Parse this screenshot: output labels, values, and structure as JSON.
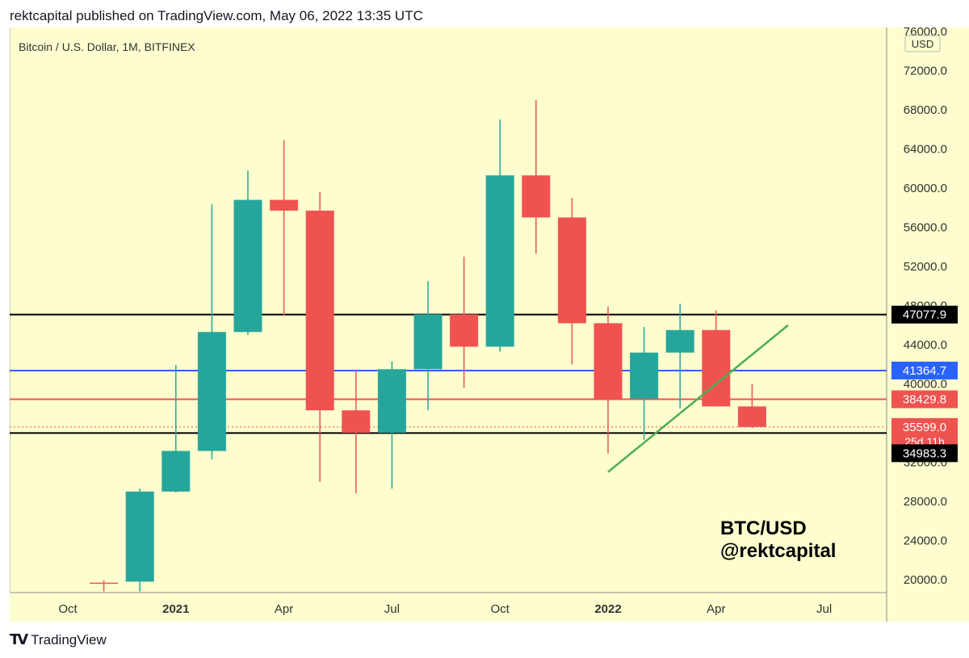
{
  "header": {
    "publish_line": "rektcapital published on TradingView.com, May 06, 2022 13:35 UTC"
  },
  "symbol": {
    "title": "Bitcoin / U.S. Dollar, 1M, BITFINEX",
    "currency_label": "USD"
  },
  "watermark": {
    "line1": "BTC/USD",
    "line2": "@rektcapital"
  },
  "footer": {
    "brand": "TradingView",
    "logo_glyph": "TV"
  },
  "colors": {
    "background": "#fdfdcf",
    "up": "#26a69a",
    "down": "#ef5350",
    "level_black": "#000000",
    "level_blue": "#2962ff",
    "level_red": "#ef5350",
    "trendline": "#4caf50",
    "price_marker": "#ef5350"
  },
  "chart_data": {
    "type": "candlestick",
    "title": "Bitcoin / U.S. Dollar, 1M, BITFINEX",
    "ylim": [
      18500,
      77000
    ],
    "y_ticks": [
      20000,
      24000,
      28000,
      32000,
      36000,
      40000,
      44000,
      48000,
      52000,
      56000,
      60000,
      64000,
      68000,
      72000,
      76000
    ],
    "x_ticks": [
      {
        "label": "Oct",
        "month": "2020-10",
        "bold": false
      },
      {
        "label": "2021",
        "month": "2021-01",
        "bold": true
      },
      {
        "label": "Apr",
        "month": "2021-04",
        "bold": false
      },
      {
        "label": "Jul",
        "month": "2021-07",
        "bold": false
      },
      {
        "label": "Oct",
        "month": "2021-10",
        "bold": false
      },
      {
        "label": "2022",
        "month": "2022-01",
        "bold": true
      },
      {
        "label": "Apr",
        "month": "2022-04",
        "bold": false
      },
      {
        "label": "Jul",
        "month": "2022-07",
        "bold": false
      }
    ],
    "candles": [
      {
        "month": "2020-11",
        "open": 19700,
        "high": 19950,
        "low": 18800,
        "close": 19600
      },
      {
        "month": "2020-12",
        "open": 19800,
        "high": 29300,
        "low": 18800,
        "close": 29000
      },
      {
        "month": "2021-01",
        "open": 29000,
        "high": 41950,
        "low": 28900,
        "close": 33150
      },
      {
        "month": "2021-02",
        "open": 33150,
        "high": 58350,
        "low": 32300,
        "close": 45300
      },
      {
        "month": "2021-03",
        "open": 45300,
        "high": 61800,
        "low": 45000,
        "close": 58800
      },
      {
        "month": "2021-04",
        "open": 58800,
        "high": 64900,
        "low": 47000,
        "close": 57700
      },
      {
        "month": "2021-05",
        "open": 57700,
        "high": 59600,
        "low": 30000,
        "close": 37300
      },
      {
        "month": "2021-06",
        "open": 37300,
        "high": 41400,
        "low": 28800,
        "close": 35000
      },
      {
        "month": "2021-07",
        "open": 35000,
        "high": 42300,
        "low": 29300,
        "close": 41500
      },
      {
        "month": "2021-08",
        "open": 41500,
        "high": 50500,
        "low": 37300,
        "close": 47100
      },
      {
        "month": "2021-09",
        "open": 47100,
        "high": 53000,
        "low": 39600,
        "close": 43800
      },
      {
        "month": "2021-10",
        "open": 43800,
        "high": 67000,
        "low": 43300,
        "close": 61300
      },
      {
        "month": "2021-11",
        "open": 61300,
        "high": 69000,
        "low": 53300,
        "close": 57000
      },
      {
        "month": "2021-12",
        "open": 57000,
        "high": 59000,
        "low": 42000,
        "close": 46200
      },
      {
        "month": "2022-01",
        "open": 46200,
        "high": 47900,
        "low": 32900,
        "close": 38500
      },
      {
        "month": "2022-02",
        "open": 38500,
        "high": 45800,
        "low": 34300,
        "close": 43200
      },
      {
        "month": "2022-03",
        "open": 43200,
        "high": 48200,
        "low": 37500,
        "close": 45500
      },
      {
        "month": "2022-04",
        "open": 45500,
        "high": 47500,
        "low": 37700,
        "close": 37700
      },
      {
        "month": "2022-05",
        "open": 37700,
        "high": 40000,
        "low": 35500,
        "close": 35600
      }
    ],
    "levels": [
      {
        "value": 47077.9,
        "label": "47077.9",
        "color": "#000000"
      },
      {
        "value": 41364.7,
        "label": "41364.7",
        "color": "#2962ff"
      },
      {
        "value": 38429.8,
        "label": "38429.8",
        "color": "#ef5350"
      },
      {
        "value": 34983.3,
        "label": "34983.3",
        "color": "#000000"
      }
    ],
    "last_price": {
      "value": 35599.0,
      "label": "35599.0",
      "countdown": "25d 11h"
    },
    "trendline": {
      "start": {
        "month": "2022-01",
        "value": 31000
      },
      "end": {
        "month": "2022-06",
        "value": 46000
      }
    }
  }
}
